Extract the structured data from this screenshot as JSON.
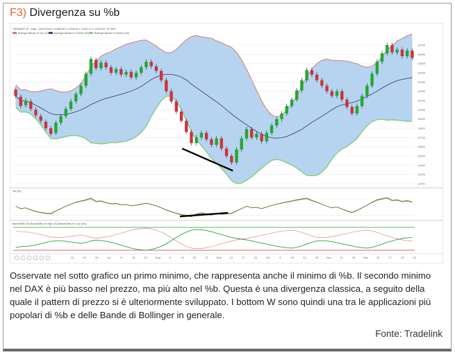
{
  "figure": {
    "code": "F3)",
    "title": "Divergenza su %b",
    "accent_color": "#e8672a"
  },
  "chart_header": {
    "line1": "GERMANY 30 - Daily - 16/07/2018 O 12386.59 H 12445.50 L 12340.12 C 12310.00 +67.59%",
    "line2_items": [
      "Bollinger Bands (% Top (20)",
      "Bollinger Bands (% Center (20)",
      "Bollinger Bands (% Bottom (20)"
    ]
  },
  "panel2_header": "%b (20)",
  "panel3_header": "BandWidth (20) BandWidth (% High (20)) BandWidth (% Low (20))",
  "caption": "Osservate nel sotto grafico un primo minimo, che rappresenta anche il minimo di %b. Il secondo minimo nel DAX è più basso nel prezzo, ma più alto nel %b. Questa è una divergenza classica, a seguito della quale il pattern di prezzo si è ulteriormente sviluppato. I bottom W sono quindi una tra le applicazioni più popolari di %b e delle Bande di Bollinger in generale.",
  "source": "Fonte: Tradelink",
  "chart_data": {
    "type": "line",
    "title": "",
    "xlabel": "",
    "ylabel": "",
    "colors": {
      "band_fill": "#b6d4ef",
      "upper_band": "#d9787a",
      "lower_band": "#8ccf8a",
      "center_line": "#44447a",
      "up_candle": "#23a82b",
      "down_candle": "#d0323a",
      "wick": "#1a4b8c",
      "divergence_line": "#000000"
    },
    "price_y_ticks": [
      "12700",
      "12600",
      "12500",
      "12400",
      "12300",
      "12200",
      "12100",
      "12000",
      "11900",
      "11800",
      "11700",
      "11600",
      "11500",
      "11400",
      "11300",
      "11200"
    ],
    "x_tick_labels": [
      "12",
      "19",
      "26",
      "Jul",
      "9",
      "16",
      "23",
      "Aug",
      "6",
      "13",
      "20",
      "27",
      "Sep",
      "10",
      "17",
      "24",
      "Oct",
      "8",
      "15",
      "22",
      "29",
      "Nov",
      "12",
      "19",
      "Dec",
      "10",
      "17",
      "26",
      "21"
    ],
    "price_series": [
      {
        "o": 12220,
        "c": 12150
      },
      {
        "o": 12140,
        "c": 12040
      },
      {
        "o": 12050,
        "c": 12100
      },
      {
        "o": 12090,
        "c": 12010
      },
      {
        "o": 12000,
        "c": 11940
      },
      {
        "o": 11930,
        "c": 11880
      },
      {
        "o": 11870,
        "c": 11800
      },
      {
        "o": 11800,
        "c": 11740
      },
      {
        "o": 11750,
        "c": 11860
      },
      {
        "o": 11860,
        "c": 11930
      },
      {
        "o": 11930,
        "c": 12010
      },
      {
        "o": 12010,
        "c": 12090
      },
      {
        "o": 12090,
        "c": 12170
      },
      {
        "o": 12170,
        "c": 12260
      },
      {
        "o": 12260,
        "c": 12390
      },
      {
        "o": 12390,
        "c": 12550
      },
      {
        "o": 12540,
        "c": 12450
      },
      {
        "o": 12450,
        "c": 12510
      },
      {
        "o": 12510,
        "c": 12460
      },
      {
        "o": 12460,
        "c": 12400
      },
      {
        "o": 12400,
        "c": 12440
      },
      {
        "o": 12440,
        "c": 12380
      },
      {
        "o": 12380,
        "c": 12410
      },
      {
        "o": 12410,
        "c": 12350
      },
      {
        "o": 12350,
        "c": 12400
      },
      {
        "o": 12400,
        "c": 12460
      },
      {
        "o": 12460,
        "c": 12520
      },
      {
        "o": 12520,
        "c": 12470
      },
      {
        "o": 12470,
        "c": 12420
      },
      {
        "o": 12420,
        "c": 12320
      },
      {
        "o": 12320,
        "c": 12200
      },
      {
        "o": 12200,
        "c": 12090
      },
      {
        "o": 12090,
        "c": 11980
      },
      {
        "o": 11980,
        "c": 11880
      },
      {
        "o": 11880,
        "c": 11760
      },
      {
        "o": 11760,
        "c": 11640
      },
      {
        "o": 11640,
        "c": 11700
      },
      {
        "o": 11700,
        "c": 11750
      },
      {
        "o": 11750,
        "c": 11680
      },
      {
        "o": 11680,
        "c": 11620
      },
      {
        "o": 11620,
        "c": 11690
      },
      {
        "o": 11690,
        "c": 11580
      },
      {
        "o": 11580,
        "c": 11500
      },
      {
        "o": 11500,
        "c": 11430
      },
      {
        "o": 11430,
        "c": 11570
      },
      {
        "o": 11570,
        "c": 11690
      },
      {
        "o": 11690,
        "c": 11790
      },
      {
        "o": 11790,
        "c": 11700
      },
      {
        "o": 11700,
        "c": 11740
      },
      {
        "o": 11740,
        "c": 11660
      },
      {
        "o": 11660,
        "c": 11750
      },
      {
        "o": 11750,
        "c": 11830
      },
      {
        "o": 11830,
        "c": 11900
      },
      {
        "o": 11900,
        "c": 11960
      },
      {
        "o": 11960,
        "c": 12040
      },
      {
        "o": 12040,
        "c": 12110
      },
      {
        "o": 12110,
        "c": 12210
      },
      {
        "o": 12210,
        "c": 12320
      },
      {
        "o": 12320,
        "c": 12430
      },
      {
        "o": 12430,
        "c": 12380
      },
      {
        "o": 12380,
        "c": 12320
      },
      {
        "o": 12320,
        "c": 12260
      },
      {
        "o": 12260,
        "c": 12200
      },
      {
        "o": 12200,
        "c": 12150
      },
      {
        "o": 12150,
        "c": 12200
      },
      {
        "o": 12200,
        "c": 12110
      },
      {
        "o": 12110,
        "c": 12030
      },
      {
        "o": 12030,
        "c": 11960
      },
      {
        "o": 11960,
        "c": 12040
      },
      {
        "o": 12040,
        "c": 12150
      },
      {
        "o": 12150,
        "c": 12260
      },
      {
        "o": 12260,
        "c": 12390
      },
      {
        "o": 12390,
        "c": 12520
      },
      {
        "o": 12520,
        "c": 12610
      },
      {
        "o": 12610,
        "c": 12700
      },
      {
        "o": 12700,
        "c": 12620
      },
      {
        "o": 12620,
        "c": 12650
      },
      {
        "o": 12650,
        "c": 12580
      },
      {
        "o": 12580,
        "c": 12640
      },
      {
        "o": 12640,
        "c": 12560
      }
    ],
    "pctb_series": [
      0.55,
      0.4,
      0.45,
      0.32,
      0.22,
      0.15,
      0.1,
      0.08,
      0.25,
      0.4,
      0.55,
      0.68,
      0.8,
      0.88,
      0.95,
      1.05,
      0.85,
      0.88,
      0.78,
      0.7,
      0.72,
      0.65,
      0.66,
      0.58,
      0.62,
      0.68,
      0.74,
      0.66,
      0.58,
      0.45,
      0.32,
      0.2,
      0.1,
      0.02,
      -0.05,
      -0.1,
      0.05,
      0.12,
      0.05,
      0.0,
      0.1,
      0.05,
      0.08,
      0.1,
      0.25,
      0.4,
      0.55,
      0.45,
      0.48,
      0.4,
      0.5,
      0.6,
      0.68,
      0.75,
      0.82,
      0.88,
      0.95,
      1.0,
      1.05,
      0.92,
      0.8,
      0.68,
      0.55,
      0.45,
      0.5,
      0.38,
      0.25,
      0.15,
      0.28,
      0.45,
      0.62,
      0.8,
      0.95,
      1.02,
      1.08,
      0.92,
      0.95,
      0.85,
      0.9,
      0.82
    ],
    "bandwidth_series": [
      3.2,
      3.4,
      3.5,
      3.6,
      3.9,
      4.2,
      4.6,
      4.9,
      5.0,
      5.0,
      4.9,
      4.7,
      4.5,
      4.3,
      4.6,
      5.0,
      5.2,
      5.1,
      4.9,
      4.6,
      4.2,
      3.8,
      3.4,
      3.0,
      2.7,
      2.5,
      2.4,
      2.6,
      3.0,
      3.5,
      4.2,
      5.1,
      6.0,
      6.8,
      7.5,
      8.0,
      8.2,
      8.1,
      7.9,
      7.6,
      7.2,
      6.8,
      6.4,
      6.0,
      5.7,
      5.5,
      5.3,
      5.0,
      4.7,
      4.4,
      4.1,
      3.8,
      3.5,
      3.3,
      3.1,
      3.0,
      3.2,
      3.6,
      4.1,
      4.6,
      5.0,
      5.1,
      5.0,
      4.8,
      4.5,
      4.2,
      3.9,
      3.6,
      3.3,
      3.1,
      3.0,
      3.2,
      3.6,
      4.1,
      4.6,
      5.0,
      5.4,
      5.7,
      5.9,
      6.0
    ]
  }
}
